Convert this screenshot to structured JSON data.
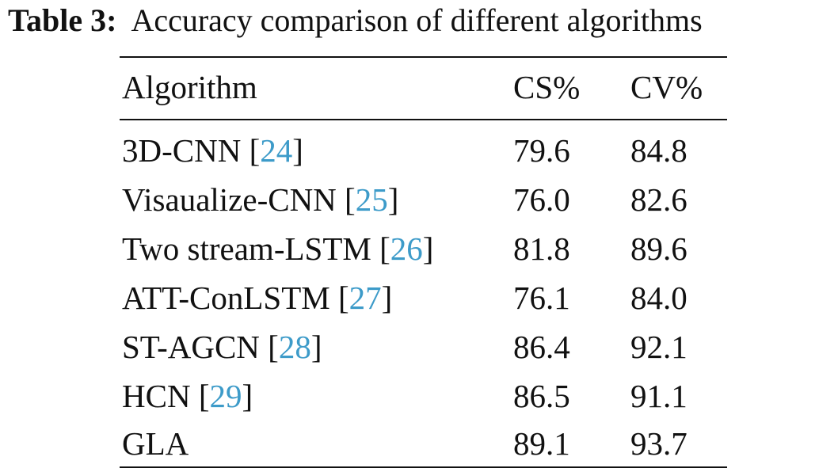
{
  "caption": {
    "label": "Table 3:",
    "text": "Accuracy comparison of different algorithms"
  },
  "table": {
    "headers": [
      "Algorithm",
      "CS%",
      "CV%"
    ],
    "rows": [
      {
        "algorithm": "3D-CNN",
        "ref": "24",
        "cs": "79.6",
        "cv": "84.8"
      },
      {
        "algorithm": "Visaualize-CNN",
        "ref": "25",
        "cs": "76.0",
        "cv": "82.6"
      },
      {
        "algorithm": "Two stream-LSTM",
        "ref": "26",
        "cs": "81.8",
        "cv": "89.6"
      },
      {
        "algorithm": "ATT-ConLSTM",
        "ref": "27",
        "cs": "76.1",
        "cv": "84.0"
      },
      {
        "algorithm": "ST-AGCN",
        "ref": "28",
        "cs": "86.4",
        "cv": "92.1"
      },
      {
        "algorithm": "HCN",
        "ref": "29",
        "cs": "86.5",
        "cv": "91.1"
      },
      {
        "algorithm": "GLA",
        "ref": "",
        "cs": "89.1",
        "cv": "93.7"
      }
    ]
  },
  "colors": {
    "citation": "#3d9bc9",
    "text": "#111111"
  }
}
